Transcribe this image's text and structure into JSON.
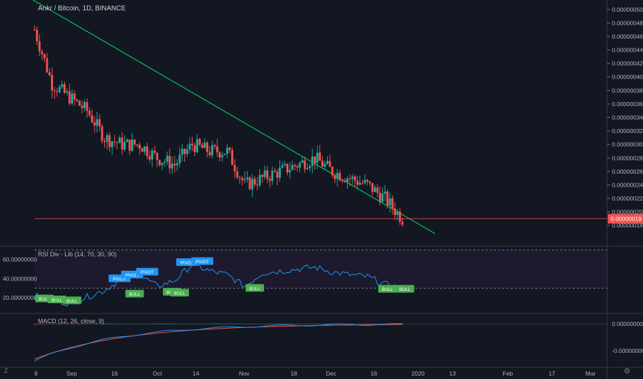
{
  "title": "Ankr / Bitcoin, 1D, BINANCE",
  "price_axis": {
    "ticks": [
      "0.00000050",
      "0.00000048",
      "0.00000046",
      "0.00000044",
      "0.00000042",
      "0.00000040",
      "0.00000038",
      "0.00000036",
      "0.00000034",
      "0.00000032",
      "0.00000030",
      "0.00000028",
      "0.00000026",
      "0.00000024",
      "0.00000022",
      "0.00000020",
      "0.00000018"
    ],
    "last_price": "0.00000019",
    "last_price_color": "#ef5350"
  },
  "rsi_pane": {
    "label": "RSI Div - Lib (14, 70, 30, 90)",
    "ticks": [
      "60.00000000",
      "40.00000000",
      "20.00000000"
    ],
    "pivot_label": "PIVOT",
    "bull_label": "BULL"
  },
  "macd_pane": {
    "label": "MACD (12, 26, close, 9)",
    "ticks": [
      "0.00000000",
      "-0.00000000"
    ]
  },
  "time_axis": [
    "9",
    "Sep",
    "16",
    "Oct",
    "14",
    "Nov",
    "18",
    "Dec",
    "16",
    "2020",
    "13",
    "Feb",
    "17",
    "Mar"
  ],
  "colors": {
    "up": "#26a69a",
    "down": "#ef5350",
    "trendline": "#00c853",
    "rsi": "#2196f3",
    "macd": "#2196f3",
    "signal": "#ef5350",
    "label_up": "#2196f3",
    "label_bull": "#4caf50"
  },
  "icons": {
    "bottom_left": "z-icon",
    "bottom_right": "settings-icon"
  },
  "chart_data": {
    "type": "candlestick",
    "title": "Ankr / Bitcoin, 1D, BINANCE",
    "y_range": [
      1.7e-07,
      5.1e-07
    ],
    "x_range": [
      "2019-08-09",
      "2020-03-22"
    ],
    "last_price": 1.9e-07,
    "trendline": {
      "from": [
        "2019-08-01",
        5.3e-07
      ],
      "to": [
        "2020-01-16",
        1.68e-07
      ]
    },
    "close_series": [
      [
        "2019-08-09",
        4.7e-07
      ],
      [
        "2019-08-16",
        3.9e-07
      ],
      [
        "2019-08-23",
        3.7e-07
      ],
      [
        "2019-08-30",
        3.5e-07
      ],
      [
        "2019-09-06",
        3.1e-07
      ],
      [
        "2019-09-13",
        3e-07
      ],
      [
        "2019-09-20",
        3e-07
      ],
      [
        "2019-09-27",
        2.8e-07
      ],
      [
        "2019-10-04",
        2.7e-07
      ],
      [
        "2019-10-11",
        3e-07
      ],
      [
        "2019-10-18",
        2.9e-07
      ],
      [
        "2019-10-25",
        2.9e-07
      ],
      [
        "2019-11-01",
        2.4e-07
      ],
      [
        "2019-11-08",
        2.5e-07
      ],
      [
        "2019-11-15",
        2.6e-07
      ],
      [
        "2019-11-22",
        2.7e-07
      ],
      [
        "2019-11-29",
        2.8e-07
      ],
      [
        "2019-12-06",
        2.6e-07
      ],
      [
        "2019-12-13",
        2.5e-07
      ],
      [
        "2019-12-20",
        2.4e-07
      ],
      [
        "2019-12-27",
        2.2e-07
      ],
      [
        "2020-01-03",
        1.9e-07
      ]
    ],
    "rsi": {
      "overbought": 70,
      "oversold": 30,
      "values": [
        [
          "2019-08-09",
          22
        ],
        [
          "2019-08-16",
          18
        ],
        [
          "2019-08-23",
          14
        ],
        [
          "2019-09-06",
          28
        ],
        [
          "2019-09-13",
          40
        ],
        [
          "2019-09-20",
          44
        ],
        [
          "2019-09-27",
          32
        ],
        [
          "2019-10-04",
          38
        ],
        [
          "2019-10-11",
          55
        ],
        [
          "2019-10-18",
          48
        ],
        [
          "2019-10-25",
          44
        ],
        [
          "2019-11-01",
          32
        ],
        [
          "2019-11-08",
          46
        ],
        [
          "2019-11-15",
          48
        ],
        [
          "2019-11-22",
          50
        ],
        [
          "2019-11-29",
          52
        ],
        [
          "2019-12-06",
          47
        ],
        [
          "2019-12-13",
          44
        ],
        [
          "2019-12-20",
          42
        ],
        [
          "2019-12-27",
          34
        ],
        [
          "2020-01-03",
          30
        ]
      ]
    },
    "macd": {
      "fast": 12,
      "slow": 26,
      "signal": 9
    }
  }
}
